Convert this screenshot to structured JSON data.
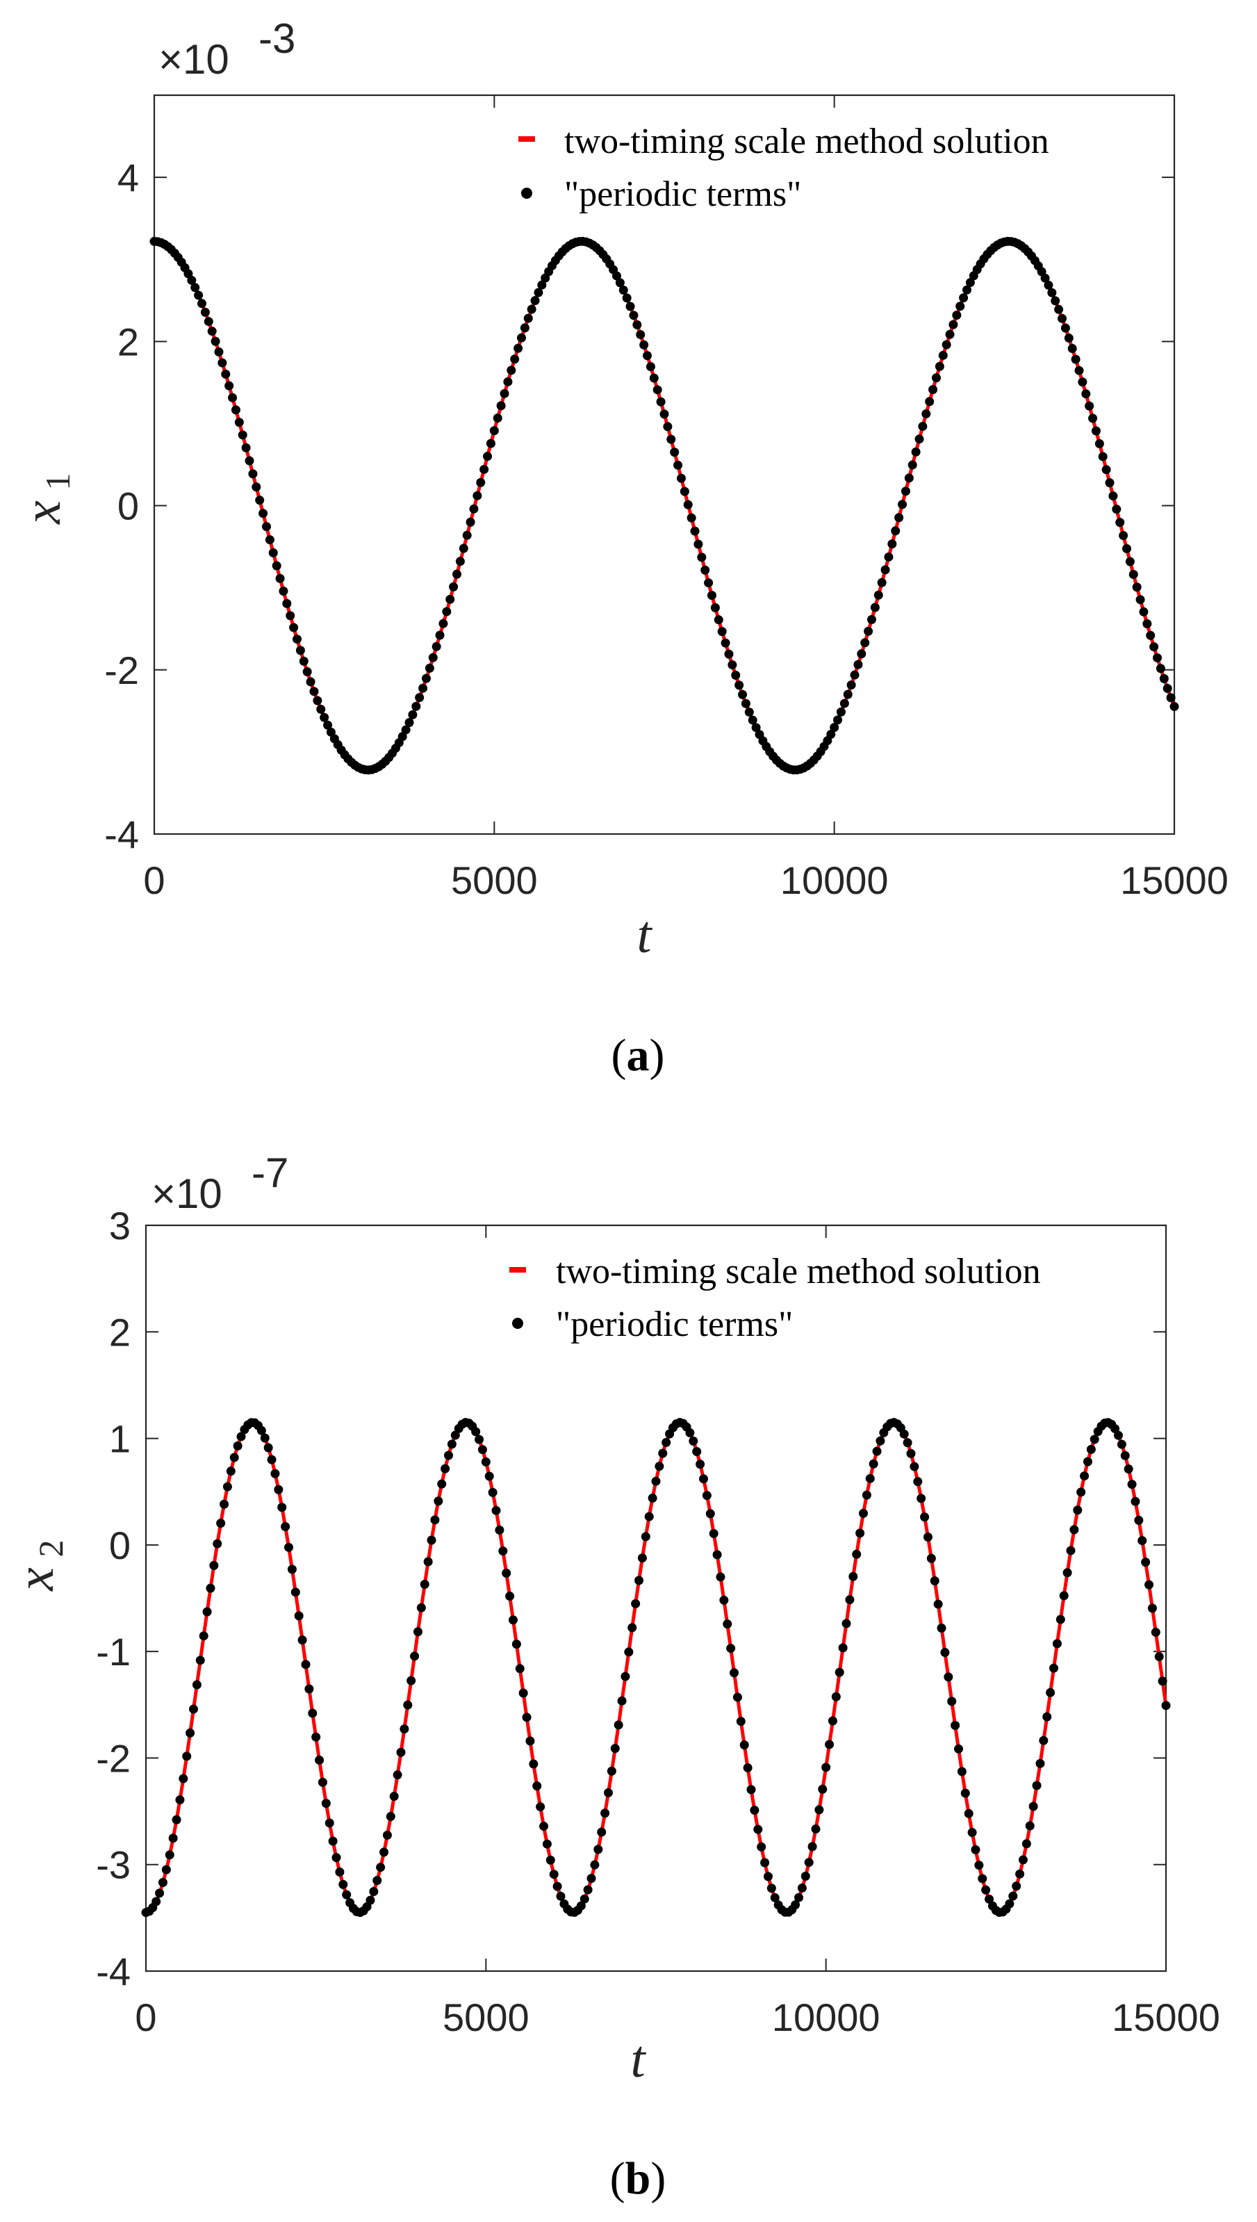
{
  "colors": {
    "line": "#ff0000",
    "marker": "#000000",
    "axis": "#262626"
  },
  "chart_data": [
    {
      "type": "line",
      "panel_label": "a",
      "caption_open": "(",
      "caption_close": ")",
      "xlabel": "t",
      "ylabel_var": "x",
      "ylabel_sub": "1",
      "exponent_label": "×10",
      "exponent_power": "-3",
      "xlim": [
        0,
        15000
      ],
      "ylim": [
        -4,
        5
      ],
      "xticks": [
        0,
        5000,
        10000,
        15000
      ],
      "xtick_labels": [
        "0",
        "5000",
        "10000",
        "15000"
      ],
      "yticks": [
        -4,
        -2,
        0,
        2,
        4
      ],
      "ytick_labels": [
        "-4",
        "-2",
        "0",
        "2",
        "4"
      ],
      "legend_location": "top-right",
      "series": [
        {
          "name": "two-timing scale method solution",
          "style": "line",
          "color": "#ff0000",
          "function": "cosine",
          "amplitude": 3.22,
          "offset": 0,
          "period": 6283,
          "phase": 0,
          "x_range": [
            0,
            15000
          ]
        },
        {
          "name": "\"periodic terms\"",
          "style": "markers",
          "color": "#000000",
          "function": "cosine",
          "amplitude": 3.22,
          "offset": 0,
          "period": 6283,
          "phase": 0,
          "x_range": [
            0,
            15000
          ],
          "marker_spacing": 50
        }
      ]
    },
    {
      "type": "line",
      "panel_label": "b",
      "caption_open": "(",
      "caption_close": ")",
      "xlabel": "t",
      "ylabel_var": "x",
      "ylabel_sub": "2",
      "exponent_label": "×10",
      "exponent_power": "-7",
      "xlim": [
        0,
        15000
      ],
      "ylim": [
        -4,
        3
      ],
      "xticks": [
        0,
        5000,
        10000,
        15000
      ],
      "xtick_labels": [
        "0",
        "5000",
        "10000",
        "15000"
      ],
      "yticks": [
        -4,
        -3,
        -2,
        -1,
        0,
        1,
        2,
        3
      ],
      "ytick_labels": [
        "-4",
        "-3",
        "-2",
        "-1",
        "0",
        "1",
        "2",
        "3"
      ],
      "legend_location": "top-right",
      "series": [
        {
          "name": "two-timing scale method solution",
          "style": "line",
          "color": "#ff0000",
          "function": "cosine",
          "amplitude": -2.3,
          "offset": -1.15,
          "period": 3141.5,
          "phase": 0,
          "x_range": [
            0,
            15000
          ]
        },
        {
          "name": "\"periodic terms\"",
          "style": "markers",
          "color": "#000000",
          "function": "cosine",
          "amplitude": -2.3,
          "offset": -1.15,
          "period": 3141.5,
          "phase": 0,
          "x_range": [
            0,
            15000
          ],
          "marker_spacing": 50
        }
      ]
    }
  ]
}
